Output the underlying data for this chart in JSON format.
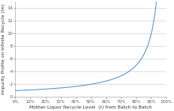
{
  "xlabel": "Mother Liquor Recycle Level  (r) from Batch to Batch",
  "ylabel": "Impurity Profile on Infinite Recycle (I∞)",
  "xlim": [
    0,
    1.0
  ],
  "ylim": [
    0,
    15
  ],
  "yticks": [
    0,
    2,
    4,
    6,
    8,
    10,
    12,
    14
  ],
  "xticks": [
    0.0,
    0.1,
    0.2,
    0.3,
    0.4,
    0.5,
    0.6,
    0.7,
    0.8,
    0.9,
    1.0
  ],
  "xtick_labels": [
    "0%",
    "10%",
    "20%",
    "30%",
    "40%",
    "50%",
    "60%",
    "70%",
    "80%",
    "90%",
    "100%"
  ],
  "line_color": "#5b9bd5",
  "background_color": "#ffffff",
  "grid_color": "#c8c8c8",
  "xlabel_fontsize": 4.2,
  "ylabel_fontsize": 4.2,
  "tick_fontsize": 3.8,
  "r_max": 0.935
}
